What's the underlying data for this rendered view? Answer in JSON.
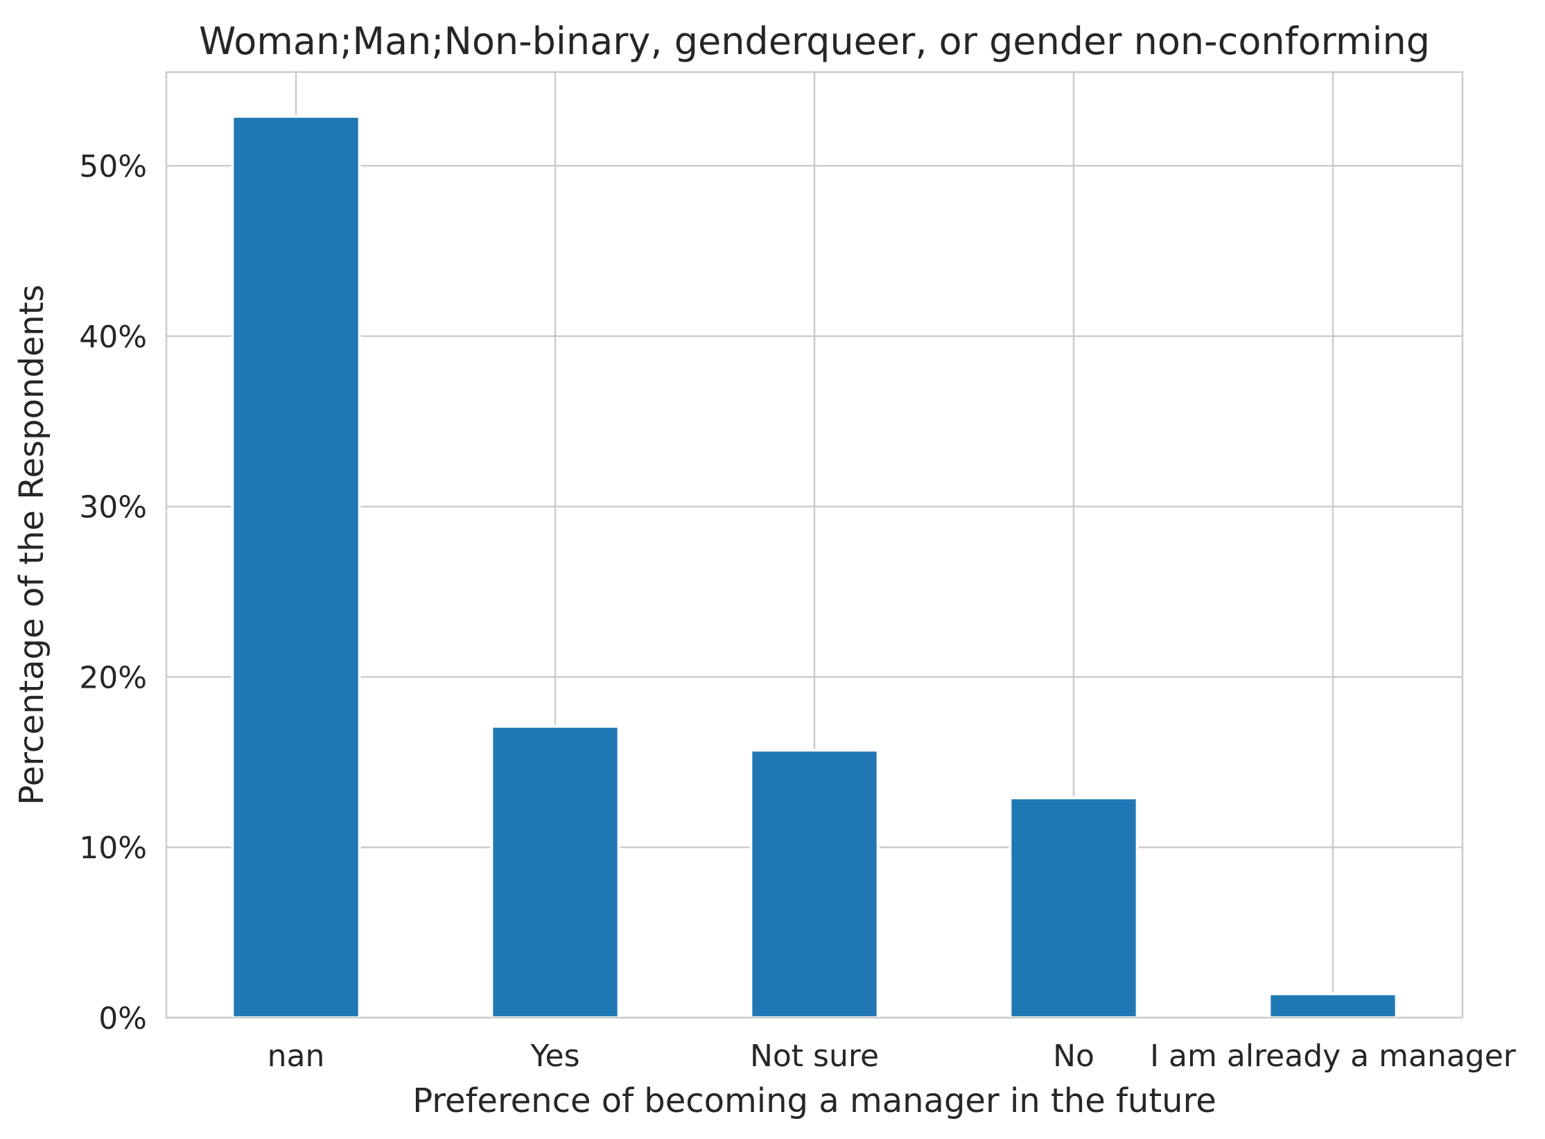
{
  "chart_data": {
    "type": "bar",
    "title": "Woman;Man;Non-binary, genderqueer, or gender non-conforming",
    "xlabel": "Preference of becoming a manager in the future",
    "ylabel": "Percentage of the Respondents",
    "categories": [
      "nan",
      "Yes",
      "Not sure",
      "No",
      "I am already a manager"
    ],
    "values": [
      52.9,
      17.1,
      15.7,
      12.9,
      1.4
    ],
    "ylim": [
      0,
      55.5
    ],
    "yticks": [
      0,
      10,
      20,
      30,
      40,
      50
    ],
    "ytick_labels": [
      "0%",
      "10%",
      "20%",
      "30%",
      "40%",
      "50%"
    ],
    "grid": true,
    "bar_color": "#1f77b4",
    "grid_color": "#cccccc"
  }
}
